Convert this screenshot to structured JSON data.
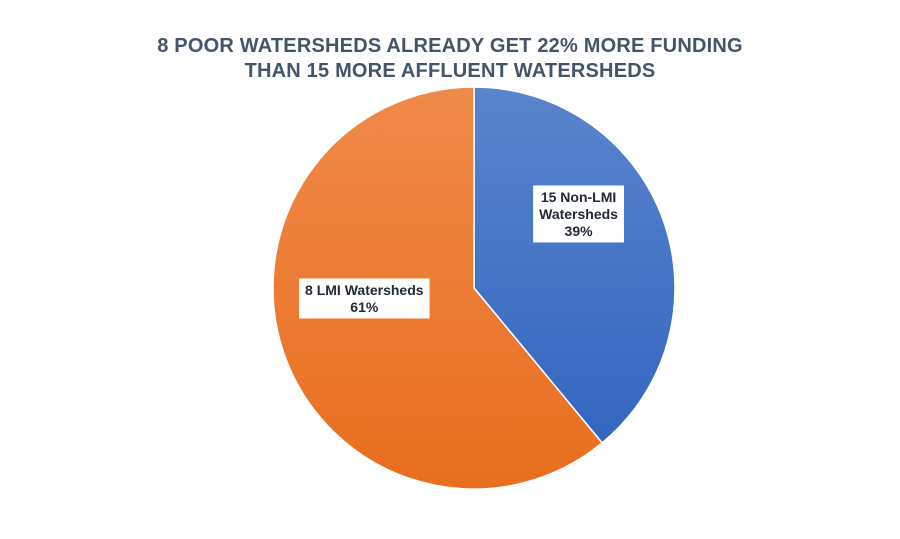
{
  "chart_data": {
    "type": "pie",
    "title": [
      "8 POOR WATERSHEDS ALREADY GET 22% MORE FUNDING",
      "THAN 15 MORE AFFLUENT WATERSHEDS"
    ],
    "slices": [
      {
        "name": "15 Non-LMI Watersheds",
        "label_lines": [
          "15 Non-LMI",
          "Watersheds",
          "39%"
        ],
        "value": 39,
        "color": "#4472c4"
      },
      {
        "name": "8 LMI Watersheds",
        "label_lines": [
          "8 LMI Watersheds",
          "61%"
        ],
        "value": 61,
        "color": "#ed7d31"
      }
    ]
  }
}
